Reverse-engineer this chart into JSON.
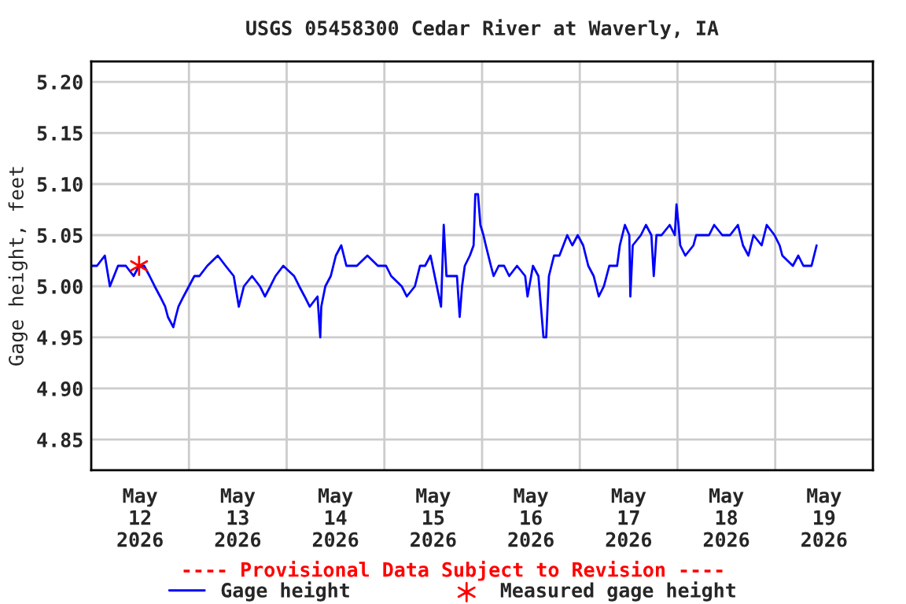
{
  "chart_data": {
    "type": "line",
    "title": "USGS 05458300 Cedar River at Waverly, IA",
    "ylabel": "Gage height, feet",
    "annotations": [
      "---- Provisional Data Subject to Revision ----"
    ],
    "xlim": [
      "2026-05-12T00:00",
      "2026-05-20T00:00"
    ],
    "xticks": [
      {
        "value": "2026-05-12T12:00",
        "label": "May\n12\n2026"
      },
      {
        "value": "2026-05-13T00:00",
        "label": null
      },
      {
        "value": "2026-05-13T12:00",
        "label": "May\n13\n2026"
      },
      {
        "value": "2026-05-14T00:00",
        "label": null
      },
      {
        "value": "2026-05-14T12:00",
        "label": "May\n14\n2026"
      },
      {
        "value": "2026-05-15T00:00",
        "label": null
      },
      {
        "value": "2026-05-15T12:00",
        "label": "May\n15\n2026"
      },
      {
        "value": "2026-05-16T00:00",
        "label": null
      },
      {
        "value": "2026-05-16T12:00",
        "label": "May\n16\n2026"
      },
      {
        "value": "2026-05-17T00:00",
        "label": null
      },
      {
        "value": "2026-05-17T12:00",
        "label": "May\n17\n2026"
      },
      {
        "value": "2026-05-18T00:00",
        "label": null
      },
      {
        "value": "2026-05-18T12:00",
        "label": "May\n18\n2026"
      },
      {
        "value": "2026-05-19T00:00",
        "label": null
      },
      {
        "value": "2026-05-19T12:00",
        "label": "May\n19\n2026"
      }
    ],
    "ylim": [
      4.82,
      5.22
    ],
    "yticks": [
      {
        "value": 4.85,
        "label": "4.85"
      },
      {
        "value": 4.9,
        "label": "4.90"
      },
      {
        "value": 4.95,
        "label": "4.95"
      },
      {
        "value": 5.0,
        "label": "5.00"
      },
      {
        "value": 5.05,
        "label": "5.05"
      },
      {
        "value": 5.1,
        "label": "5.10"
      },
      {
        "value": 5.15,
        "label": "5.15"
      },
      {
        "value": 5.2,
        "label": "5.20"
      }
    ],
    "grid": true,
    "legend": "bottom",
    "series": [
      {
        "name": "Gage height",
        "color": "#0000ff",
        "marker": "none",
        "x": [
          "2026-05-12T00:00",
          "2026-05-12T01:25",
          "2026-05-12T03:20",
          "2026-05-12T04:35",
          "2026-05-12T06:35",
          "2026-05-12T08:30",
          "2026-05-12T10:25",
          "2026-05-12T11:45",
          "2026-05-12T13:00",
          "2026-05-12T14:20",
          "2026-05-12T15:35",
          "2026-05-12T16:55",
          "2026-05-12T18:10",
          "2026-05-12T18:50",
          "2026-05-12T20:10",
          "2026-05-12T20:45",
          "2026-05-12T21:25",
          "2026-05-12T22:40",
          "2026-05-13T00:00",
          "2026-05-13T01:20",
          "2026-05-13T02:35",
          "2026-05-13T04:30",
          "2026-05-13T07:05",
          "2026-05-13T09:00",
          "2026-05-13T11:00",
          "2026-05-13T12:15",
          "2026-05-13T13:30",
          "2026-05-13T15:30",
          "2026-05-13T17:25",
          "2026-05-13T18:40",
          "2026-05-13T20:00",
          "2026-05-13T21:15",
          "2026-05-13T23:10",
          "2026-05-14T01:50",
          "2026-05-14T03:05",
          "2026-05-14T04:25",
          "2026-05-14T05:40",
          "2026-05-14T07:35",
          "2026-05-14T08:15",
          "2026-05-14T08:30",
          "2026-05-14T09:30",
          "2026-05-14T10:50",
          "2026-05-14T12:05",
          "2026-05-14T13:25",
          "2026-05-14T14:40",
          "2026-05-14T17:15",
          "2026-05-14T19:50",
          "2026-05-14T22:25",
          "2026-05-15T00:25",
          "2026-05-15T01:40",
          "2026-05-15T04:15",
          "2026-05-15T05:30",
          "2026-05-15T07:30",
          "2026-05-15T08:45",
          "2026-05-15T10:00",
          "2026-05-15T11:20",
          "2026-05-15T13:55",
          "2026-05-15T14:35",
          "2026-05-15T15:15",
          "2026-05-15T17:50",
          "2026-05-15T18:30",
          "2026-05-15T19:05",
          "2026-05-15T19:45",
          "2026-05-15T21:00",
          "2026-05-15T21:55",
          "2026-05-15T22:20",
          "2026-05-15T23:00",
          "2026-05-15T23:35",
          "2026-05-16T00:20",
          "2026-05-16T00:55",
          "2026-05-16T02:10",
          "2026-05-16T02:50",
          "2026-05-16T04:05",
          "2026-05-16T05:25",
          "2026-05-16T06:40",
          "2026-05-16T08:35",
          "2026-05-16T10:35",
          "2026-05-16T11:10",
          "2026-05-16T12:30",
          "2026-05-16T13:50",
          "2026-05-16T15:05",
          "2026-05-16T15:45",
          "2026-05-16T16:25",
          "2026-05-16T17:40",
          "2026-05-16T19:00",
          "2026-05-16T20:55",
          "2026-05-16T22:10",
          "2026-05-16T23:30",
          "2026-05-17T00:50",
          "2026-05-17T02:05",
          "2026-05-17T03:25",
          "2026-05-17T04:40",
          "2026-05-17T05:55",
          "2026-05-17T07:15",
          "2026-05-17T09:10",
          "2026-05-17T09:50",
          "2026-05-17T11:05",
          "2026-05-17T12:10",
          "2026-05-17T12:25",
          "2026-05-17T13:00",
          "2026-05-17T15:00",
          "2026-05-17T16:15",
          "2026-05-17T17:35",
          "2026-05-17T18:10",
          "2026-05-17T18:50",
          "2026-05-17T20:05",
          "2026-05-17T22:05",
          "2026-05-17T23:20",
          "2026-05-17T23:45",
          "2026-05-18T00:15",
          "2026-05-18T00:40",
          "2026-05-18T01:55",
          "2026-05-18T03:55",
          "2026-05-18T04:35",
          "2026-05-18T07:45",
          "2026-05-18T09:00",
          "2026-05-18T11:00",
          "2026-05-18T12:55",
          "2026-05-18T14:50",
          "2026-05-18T16:05",
          "2026-05-18T17:25",
          "2026-05-18T18:40",
          "2026-05-18T20:40",
          "2026-05-18T21:55",
          "2026-05-18T23:50",
          "2026-05-19T01:05",
          "2026-05-19T01:45",
          "2026-05-19T04:20",
          "2026-05-19T05:40",
          "2026-05-19T06:55",
          "2026-05-19T08:55",
          "2026-05-19T10:10"
        ],
        "values": [
          5.02,
          5.02,
          5.03,
          5.0,
          5.02,
          5.02,
          5.01,
          5.02,
          5.02,
          5.01,
          5.0,
          4.99,
          4.98,
          4.97,
          4.96,
          4.97,
          4.98,
          4.99,
          5.0,
          5.01,
          5.01,
          5.02,
          5.03,
          5.02,
          5.01,
          4.98,
          5.0,
          5.01,
          5.0,
          4.99,
          5.0,
          5.01,
          5.02,
          5.01,
          5.0,
          4.99,
          4.98,
          4.99,
          4.95,
          4.98,
          5.0,
          5.01,
          5.03,
          5.04,
          5.02,
          5.02,
          5.03,
          5.02,
          5.02,
          5.01,
          5.0,
          4.99,
          5.0,
          5.02,
          5.02,
          5.03,
          4.98,
          5.06,
          5.01,
          5.01,
          4.97,
          5.0,
          5.02,
          5.03,
          5.04,
          5.09,
          5.09,
          5.06,
          5.05,
          5.04,
          5.02,
          5.01,
          5.02,
          5.02,
          5.01,
          5.02,
          5.01,
          4.99,
          5.02,
          5.01,
          4.95,
          4.95,
          5.01,
          5.03,
          5.03,
          5.05,
          5.04,
          5.05,
          5.04,
          5.02,
          5.01,
          4.99,
          5.0,
          5.02,
          5.02,
          5.04,
          5.06,
          5.05,
          4.99,
          5.04,
          5.05,
          5.06,
          5.05,
          5.01,
          5.05,
          5.05,
          5.06,
          5.05,
          5.08,
          5.06,
          5.04,
          5.03,
          5.04,
          5.05,
          5.05,
          5.06,
          5.05,
          5.05,
          5.06,
          5.04,
          5.03,
          5.05,
          5.04,
          5.06,
          5.05,
          5.04,
          5.03,
          5.02,
          5.03,
          5.02,
          5.02,
          5.04
        ]
      },
      {
        "name": "Measured gage height",
        "type": "scatter",
        "color": "#ff0000",
        "marker": "cross",
        "x": [
          "2026-05-12T11:45"
        ],
        "values": [
          5.02
        ]
      }
    ]
  }
}
